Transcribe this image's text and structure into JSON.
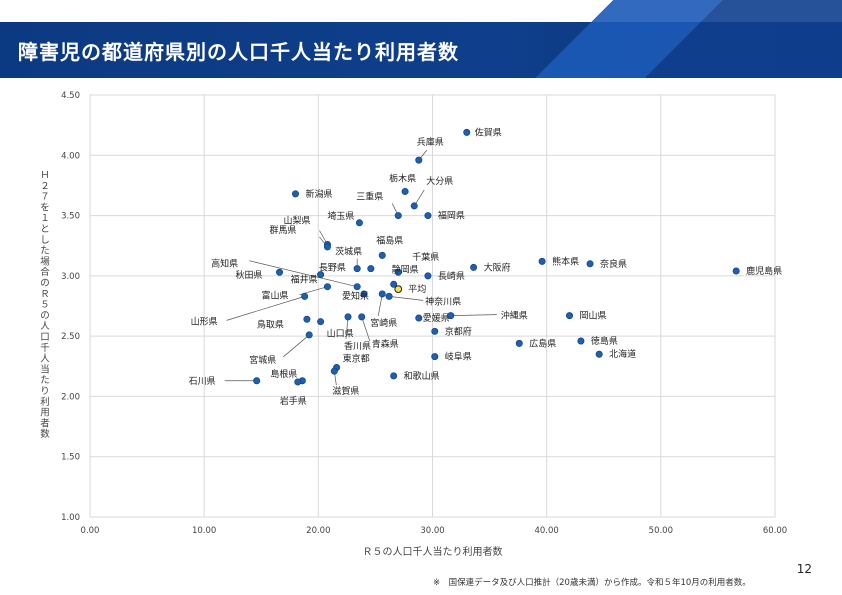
{
  "header": {
    "title": "障害児の都道府県別の人口千人当たり利用者数"
  },
  "page_number": "12",
  "footnote": "※　国保連データ及び人口推計（20歳未満）から作成。令和５年10月の利用者数。",
  "colors": {
    "point": "#1f5fae",
    "average_point": "#f2e44b",
    "header_band": "#0f3f8c",
    "grid": "#d9d9d9",
    "leader": "#555555"
  },
  "chart_data": {
    "type": "scatter",
    "title": "",
    "xlabel": "Ｒ５の人口千人当たり利用者数",
    "ylabel": "Ｈ２７を１とした場合のＲ５の人口千人当たり利用者数",
    "xlim": [
      0,
      60
    ],
    "ylim": [
      1.0,
      4.5
    ],
    "grid": true,
    "x_ticks": [
      "0.00",
      "10.00",
      "20.00",
      "30.00",
      "40.00",
      "50.00",
      "60.00"
    ],
    "y_ticks": [
      "1.00",
      "1.50",
      "2.00",
      "2.50",
      "3.00",
      "3.50",
      "4.00",
      "4.50"
    ],
    "points": [
      {
        "name": "佐賀県",
        "x": 33.0,
        "y": 4.19
      },
      {
        "name": "兵庫県",
        "x": 28.8,
        "y": 3.96
      },
      {
        "name": "新潟県",
        "x": 18.0,
        "y": 3.68
      },
      {
        "name": "栃木県",
        "x": 27.6,
        "y": 3.7
      },
      {
        "name": "大分県",
        "x": 28.4,
        "y": 3.58
      },
      {
        "name": "三重県",
        "x": 27.0,
        "y": 3.5
      },
      {
        "name": "福岡県",
        "x": 29.6,
        "y": 3.5
      },
      {
        "name": "埼玉県",
        "x": 23.6,
        "y": 3.44
      },
      {
        "name": "山梨県",
        "x": 20.8,
        "y": 3.26
      },
      {
        "name": "群馬県",
        "x": 20.8,
        "y": 3.24
      },
      {
        "name": "茨城県",
        "x": 23.4,
        "y": 3.06
      },
      {
        "name": "福島県",
        "x": 25.6,
        "y": 3.17
      },
      {
        "name": "長野県",
        "x": 24.6,
        "y": 3.06
      },
      {
        "name": "千葉県",
        "x": 27.0,
        "y": 3.03
      },
      {
        "name": "静岡県",
        "x": 26.6,
        "y": 2.93
      },
      {
        "name": "長崎県",
        "x": 29.6,
        "y": 3.0
      },
      {
        "name": "大阪府",
        "x": 33.6,
        "y": 3.07
      },
      {
        "name": "熊本県",
        "x": 39.6,
        "y": 3.12
      },
      {
        "name": "奈良県",
        "x": 43.8,
        "y": 3.1
      },
      {
        "name": "鹿児島県",
        "x": 56.6,
        "y": 3.04
      },
      {
        "name": "高知県",
        "x": 23.4,
        "y": 2.91
      },
      {
        "name": "秋田県",
        "x": 16.6,
        "y": 3.03
      },
      {
        "name": "福井県",
        "x": 20.2,
        "y": 3.01
      },
      {
        "name": "富山県",
        "x": 20.8,
        "y": 2.91
      },
      {
        "name": "平均",
        "x": 27.0,
        "y": 2.89,
        "average": true
      },
      {
        "name": "神奈川県",
        "x": 26.2,
        "y": 2.83
      },
      {
        "name": "山形県",
        "x": 18.8,
        "y": 2.83
      },
      {
        "name": "愛知県",
        "x": 24.0,
        "y": 2.85
      },
      {
        "name": "沖縄県",
        "x": 31.6,
        "y": 2.67
      },
      {
        "name": "岡山県",
        "x": 42.0,
        "y": 2.67
      },
      {
        "name": "愛媛県",
        "x": 28.8,
        "y": 2.65
      },
      {
        "name": "宮崎県",
        "x": 25.6,
        "y": 2.85
      },
      {
        "name": "鳥取県",
        "x": 19.0,
        "y": 2.64
      },
      {
        "name": "山口県",
        "x": 20.2,
        "y": 2.62
      },
      {
        "name": "京都府",
        "x": 30.2,
        "y": 2.54
      },
      {
        "name": "宮城県",
        "x": 19.2,
        "y": 2.51
      },
      {
        "name": "香川県",
        "x": 22.6,
        "y": 2.66
      },
      {
        "name": "青森県",
        "x": 23.8,
        "y": 2.66
      },
      {
        "name": "広島県",
        "x": 37.6,
        "y": 2.44
      },
      {
        "name": "徳島県",
        "x": 43.0,
        "y": 2.46
      },
      {
        "name": "北海道",
        "x": 44.6,
        "y": 2.35
      },
      {
        "name": "岐阜県",
        "x": 30.2,
        "y": 2.33
      },
      {
        "name": "島根県",
        "x": 18.6,
        "y": 2.13
      },
      {
        "name": "東京都",
        "x": 21.6,
        "y": 2.24
      },
      {
        "name": "和歌山県",
        "x": 26.6,
        "y": 2.17
      },
      {
        "name": "滋賀県",
        "x": 21.4,
        "y": 2.21
      },
      {
        "name": "石川県",
        "x": 14.6,
        "y": 2.13
      },
      {
        "name": "岩手県",
        "x": 18.2,
        "y": 2.12
      }
    ]
  }
}
